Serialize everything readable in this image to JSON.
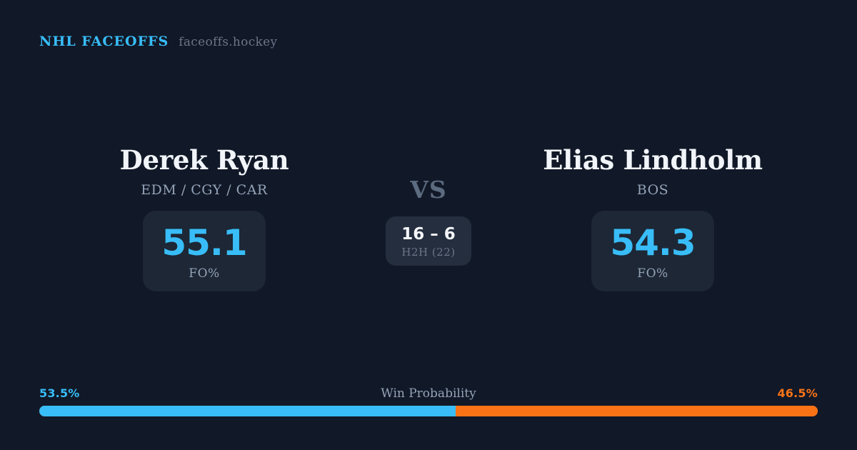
{
  "header": {
    "brand": "NHL FACEOFFS",
    "domain": "faceoffs.hockey"
  },
  "matchup": {
    "vs_label": "VS",
    "h2h": {
      "score": "16 – 6",
      "label": "H2H (22)"
    },
    "player_left": {
      "name": "Derek Ryan",
      "teams": "EDM / CGY / CAR",
      "fo_pct": "55.1",
      "stat_label": "FO%"
    },
    "player_right": {
      "name": "Elias Lindholm",
      "teams": "BOS",
      "fo_pct": "54.3",
      "stat_label": "FO%"
    }
  },
  "win_probability": {
    "label": "Win Probability",
    "left_pct": "53.5%",
    "right_pct": "46.5%",
    "left_value": 53.5,
    "right_value": 46.5
  },
  "colors": {
    "background": "#111827",
    "card": "#1d2735",
    "card_center": "#242e3e",
    "accent_blue": "#38bdf8",
    "accent_orange": "#f97316"
  }
}
